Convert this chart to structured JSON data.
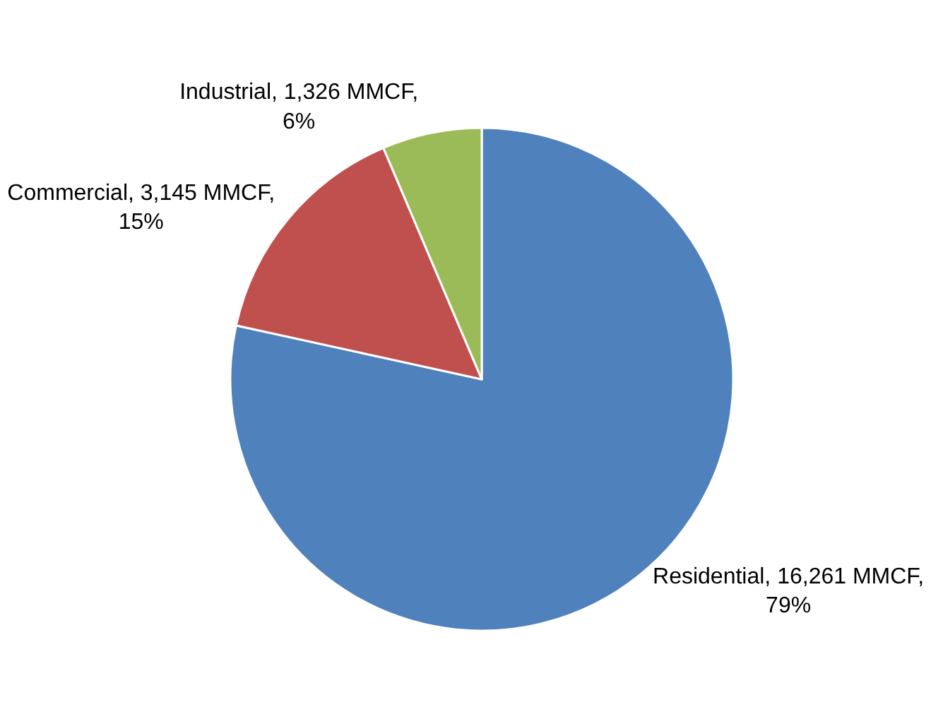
{
  "chart_data": {
    "type": "pie",
    "categories": [
      "Residential",
      "Commercial",
      "Industrial"
    ],
    "values": [
      16261,
      3145,
      1326
    ],
    "value_labels": [
      "16,261 MMCF, 79%",
      "3,145 MMCF, 15%",
      "1,326 MMCF, 6%"
    ],
    "colors": [
      "#4f81bd",
      "#c0504d",
      "#9bbb59"
    ],
    "legend": false
  }
}
